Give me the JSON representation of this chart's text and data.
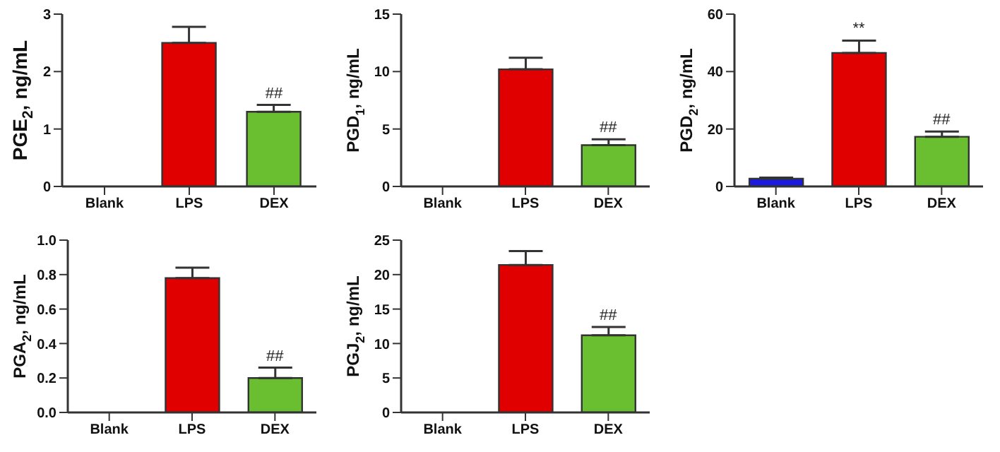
{
  "chart_data": [
    {
      "type": "bar",
      "ylabel": "PGE$_{2}$, ng/mL",
      "categories": [
        "Blank",
        "LPS",
        "DEX"
      ],
      "values": [
        0,
        2.5,
        1.3
      ],
      "errors": [
        null,
        [
          2.5,
          2.78
        ],
        [
          1.3,
          1.42
        ]
      ],
      "colors": [
        "#1a1ae0",
        "#e00000",
        "#6abf30"
      ],
      "ylim": [
        0,
        3
      ],
      "yticks": [
        0,
        1,
        2,
        3
      ],
      "annotations": [
        {
          "text": "##",
          "x": "DEX",
          "y": 1.3
        }
      ]
    },
    {
      "type": "bar",
      "ylabel": "PGD$_{1}$, ng/mL",
      "categories": [
        "Blank",
        "LPS",
        "DEX"
      ],
      "values": [
        0,
        10.2,
        3.6
      ],
      "errors": [
        null,
        [
          10.2,
          11.2
        ],
        [
          3.6,
          4.1
        ]
      ],
      "colors": [
        "#1a1ae0",
        "#e00000",
        "#6abf30"
      ],
      "ylim": [
        0,
        15
      ],
      "yticks": [
        0,
        5,
        10,
        15
      ],
      "annotations": [
        {
          "text": "##",
          "x": "DEX",
          "y": 3.6
        }
      ]
    },
    {
      "type": "bar",
      "ylabel": "PGD$_{2}$, ng/mL",
      "categories": [
        "Blank",
        "LPS",
        "DEX"
      ],
      "values": [
        2.7,
        46.5,
        17.3
      ],
      "errors": [
        [
          2.7,
          3.1
        ],
        [
          46.5,
          50.8
        ],
        [
          17.3,
          19.1
        ]
      ],
      "colors": [
        "#1a1ae0",
        "#e00000",
        "#6abf30"
      ],
      "ylim": [
        0,
        60
      ],
      "yticks": [
        0,
        20,
        40,
        60
      ],
      "annotations": [
        {
          "text": "**",
          "x": "LPS",
          "y": 46.5
        },
        {
          "text": "##",
          "x": "DEX",
          "y": 17.3
        }
      ]
    },
    {
      "type": "bar",
      "ylabel": "PGA$_{2}$, ng/mL",
      "categories": [
        "Blank",
        "LPS",
        "DEX"
      ],
      "values": [
        0,
        0.78,
        0.2
      ],
      "errors": [
        null,
        [
          0.78,
          0.84
        ],
        [
          0.2,
          0.26
        ]
      ],
      "colors": [
        "#1a1ae0",
        "#e00000",
        "#6abf30"
      ],
      "ylim": [
        0,
        1
      ],
      "yticks": [
        {
          "value": 0,
          "label": "0.0"
        },
        {
          "value": 0.2,
          "label": "0.2"
        },
        {
          "value": 0.4,
          "label": "0.4"
        },
        {
          "value": 0.6,
          "label": "0.6"
        },
        {
          "value": 0.8,
          "label": "0.8"
        },
        {
          "value": 1,
          "label": "1.0"
        }
      ],
      "annotations": [
        {
          "text": "##",
          "x": "DEX",
          "y": 0.2
        }
      ]
    },
    {
      "type": "bar",
      "ylabel": "PGJ$_{2}$, ng/mL",
      "categories": [
        "Blank",
        "LPS",
        "DEX"
      ],
      "values": [
        0,
        21.4,
        11.2
      ],
      "errors": [
        null,
        [
          21.4,
          23.4
        ],
        [
          11.2,
          12.4
        ]
      ],
      "colors": [
        "#1a1ae0",
        "#e00000",
        "#6abf30"
      ],
      "ylim": [
        0,
        25
      ],
      "yticks": [
        0,
        5,
        10,
        15,
        20,
        25
      ],
      "annotations": [
        {
          "text": "##",
          "x": "DEX",
          "y": 11.2
        }
      ]
    }
  ]
}
